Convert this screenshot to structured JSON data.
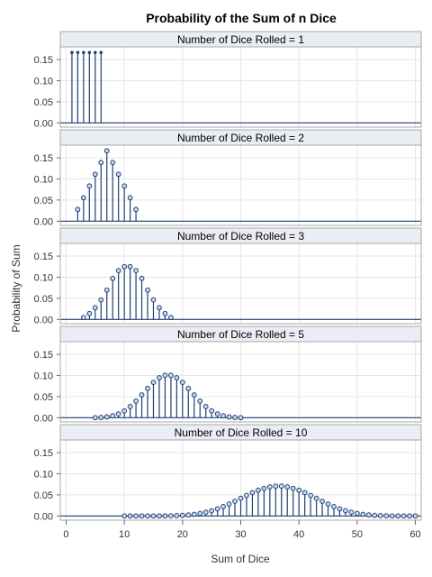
{
  "chart_data": {
    "type": "needle",
    "title": "Probability of the Sum of n Dice",
    "xlabel": "Sum of Dice",
    "ylabel": "Probability of Sum",
    "xlim": [
      -1,
      61
    ],
    "ylim": [
      -0.01,
      0.18
    ],
    "xticks": [
      "0",
      "10",
      "20",
      "30",
      "40",
      "50",
      "60"
    ],
    "yticks": [
      "0.00",
      "0.05",
      "0.10",
      "0.15"
    ],
    "grid": true,
    "panels": [
      {
        "label": "Number of Dice Rolled = 1",
        "x": [
          1,
          2,
          3,
          4,
          5,
          6
        ],
        "y": [
          0.1667,
          0.1667,
          0.1667,
          0.1667,
          0.1667,
          0.1667
        ],
        "markers": false
      },
      {
        "label": "Number of Dice Rolled = 2",
        "x": [
          2,
          3,
          4,
          5,
          6,
          7,
          8,
          9,
          10,
          11,
          12
        ],
        "y": [
          0.0278,
          0.0556,
          0.0833,
          0.1111,
          0.1389,
          0.1667,
          0.1389,
          0.1111,
          0.0833,
          0.0556,
          0.0278
        ],
        "markers": true
      },
      {
        "label": "Number of Dice Rolled = 3",
        "x": [
          3,
          4,
          5,
          6,
          7,
          8,
          9,
          10,
          11,
          12,
          13,
          14,
          15,
          16,
          17,
          18
        ],
        "y": [
          0.0046,
          0.0139,
          0.0278,
          0.0463,
          0.0694,
          0.0972,
          0.1157,
          0.125,
          0.125,
          0.1157,
          0.0972,
          0.0694,
          0.0463,
          0.0278,
          0.0139,
          0.0046
        ],
        "markers": true
      },
      {
        "label": "Number of Dice Rolled = 5",
        "x": [
          5,
          6,
          7,
          8,
          9,
          10,
          11,
          12,
          13,
          14,
          15,
          16,
          17,
          18,
          19,
          20,
          21,
          22,
          23,
          24,
          25,
          26,
          27,
          28,
          29,
          30
        ],
        "y": [
          0.0001,
          0.0006,
          0.0019,
          0.0045,
          0.009,
          0.0162,
          0.0264,
          0.0392,
          0.054,
          0.0694,
          0.0837,
          0.0945,
          0.1003,
          0.1003,
          0.0945,
          0.0837,
          0.0694,
          0.054,
          0.0392,
          0.0264,
          0.0162,
          0.009,
          0.0045,
          0.0019,
          0.0006,
          0.0001
        ],
        "markers": true
      },
      {
        "label": "Number of Dice Rolled = 10",
        "x": [
          10,
          11,
          12,
          13,
          14,
          15,
          16,
          17,
          18,
          19,
          20,
          21,
          22,
          23,
          24,
          25,
          26,
          27,
          28,
          29,
          30,
          31,
          32,
          33,
          34,
          35,
          36,
          37,
          38,
          39,
          40,
          41,
          42,
          43,
          44,
          45,
          46,
          47,
          48,
          49,
          50,
          51,
          52,
          53,
          54,
          55,
          56,
          57,
          58,
          59,
          60
        ],
        "y": [
          0.0,
          0.0,
          0.0,
          0.0,
          0.0,
          0.0,
          0.0001,
          0.0002,
          0.0004,
          0.0008,
          0.0014,
          0.0024,
          0.0038,
          0.0059,
          0.0088,
          0.0124,
          0.0169,
          0.0222,
          0.0283,
          0.0349,
          0.0418,
          0.0487,
          0.0552,
          0.0609,
          0.0653,
          0.0689,
          0.0707,
          0.0707,
          0.0689,
          0.0653,
          0.0609,
          0.0552,
          0.0487,
          0.0418,
          0.0349,
          0.0283,
          0.0222,
          0.0169,
          0.0124,
          0.0088,
          0.0059,
          0.0038,
          0.0024,
          0.0014,
          0.0008,
          0.0004,
          0.0002,
          0.0001,
          0.0,
          0.0,
          0.0
        ],
        "markers": true
      }
    ]
  },
  "colors": {
    "needle": "#1f3f73",
    "marker_fill": "#c8daf2",
    "baseline": "#1f3f73",
    "grid": "#e6e6e6",
    "frame": "#a8a8a8",
    "header_bg": "#eaedf4"
  }
}
